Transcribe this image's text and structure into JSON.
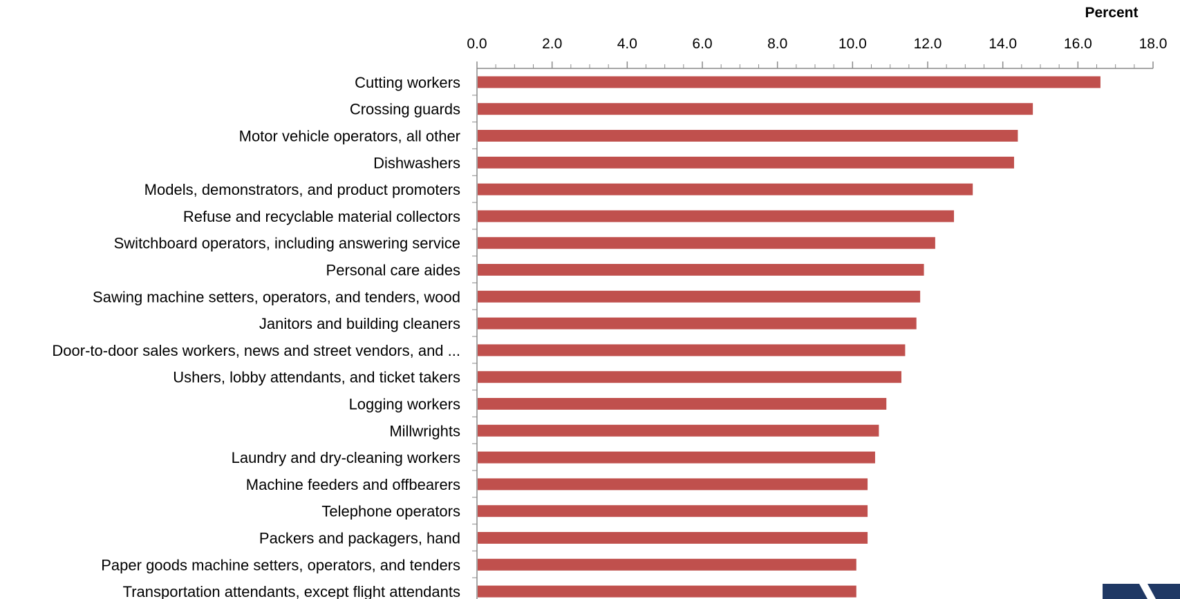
{
  "chart_data": {
    "type": "bar",
    "orientation": "horizontal",
    "unit_label": "Percent",
    "xlim": [
      0,
      18
    ],
    "tick_values": [
      0,
      2,
      4,
      6,
      8,
      10,
      12,
      14,
      16,
      18
    ],
    "tick_labels": [
      "0.0",
      "2.0",
      "4.0",
      "6.0",
      "8.0",
      "10.0",
      "12.0",
      "14.0",
      "16.0",
      "18.0"
    ],
    "axis_position": "top",
    "bar_color": "#C0504D",
    "categories": [
      "Cutting workers",
      "Crossing guards",
      "Motor vehicle operators, all other",
      "Dishwashers",
      "Models, demonstrators, and product promoters",
      "Refuse and recyclable material collectors",
      "Switchboard operators, including answering service",
      "Personal care aides",
      "Sawing machine setters, operators, and tenders, wood",
      "Janitors and building cleaners",
      "Door-to-door sales workers, news and street vendors, and ...",
      "Ushers, lobby attendants, and ticket takers",
      "Logging workers",
      "Millwrights",
      "Laundry and dry-cleaning workers",
      "Machine feeders and offbearers",
      "Telephone operators",
      "Packers and packagers, hand",
      "Paper goods machine setters, operators, and tenders",
      "Transportation attendants, except flight attendants"
    ],
    "values": [
      16.6,
      14.8,
      14.4,
      14.3,
      13.2,
      12.7,
      12.2,
      11.9,
      11.8,
      11.7,
      11.4,
      11.3,
      10.9,
      10.7,
      10.6,
      10.4,
      10.4,
      10.4,
      10.1,
      10.1
    ]
  },
  "logo": {
    "color": "#1F3864"
  }
}
